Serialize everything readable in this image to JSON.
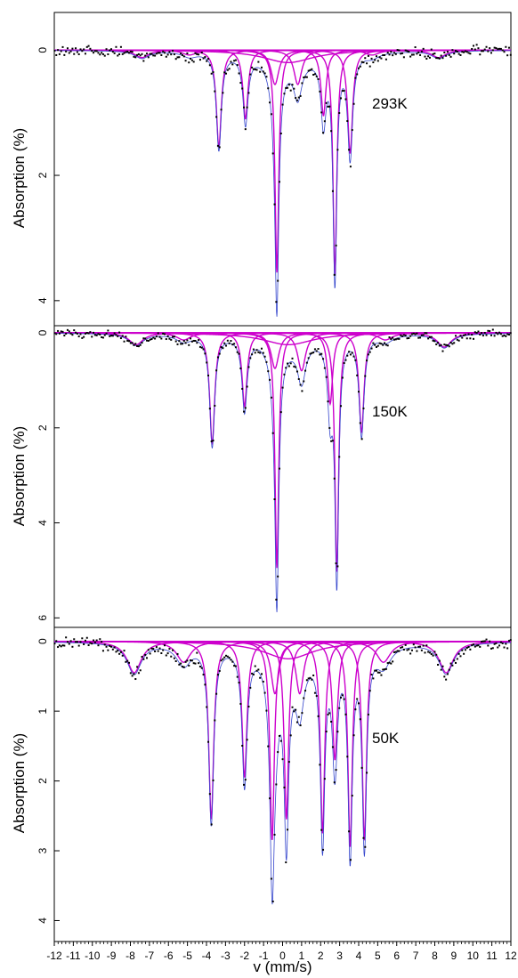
{
  "chart_data": [
    {
      "type": "scatter",
      "title": "",
      "annotation": "293K",
      "xlabel": "",
      "ylabel": "Absorption (%)",
      "xlim": [
        -12,
        12
      ],
      "ylim": [
        4.4,
        -0.6
      ],
      "ytick_labels": [
        "0",
        "2",
        "4"
      ],
      "ytick_values": [
        0,
        2,
        4
      ],
      "series": [
        {
          "kind": "fit-subspectrum",
          "color": "#cc00cc",
          "components": [
            {
              "center": -3.35,
              "depth": 1.55,
              "width": 0.16
            },
            {
              "center": -1.95,
              "depth": 1.1,
              "width": 0.16
            },
            {
              "center": -0.3,
              "depth": 3.55,
              "width": 0.12
            },
            {
              "center": 2.75,
              "depth": 3.6,
              "width": 0.12
            },
            {
              "center": 2.15,
              "depth": 1.05,
              "width": 0.16
            },
            {
              "center": 3.55,
              "depth": 1.65,
              "width": 0.16
            },
            {
              "center": -0.4,
              "depth": 0.55,
              "width": 0.25
            },
            {
              "center": 0.8,
              "depth": 0.55,
              "width": 0.25
            },
            {
              "center": -7.4,
              "depth": 0.12,
              "width": 0.45
            },
            {
              "center": -4.9,
              "depth": 0.08,
              "width": 0.45
            },
            {
              "center": 0.3,
              "depth": 0.2,
              "width": 1.6
            },
            {
              "center": 4.7,
              "depth": 0.08,
              "width": 0.45
            },
            {
              "center": 8.2,
              "depth": 0.12,
              "width": 0.45
            }
          ]
        }
      ]
    },
    {
      "type": "scatter",
      "title": "",
      "annotation": "150K",
      "xlabel": "",
      "ylabel": "Absorption (%)",
      "xlim": [
        -12,
        12
      ],
      "ylim": [
        6.2,
        -0.15
      ],
      "ytick_labels": [
        "0",
        "2",
        "4",
        "6"
      ],
      "ytick_values": [
        0,
        2,
        4,
        6
      ],
      "series": [
        {
          "kind": "fit-subspectrum",
          "color": "#cc00cc",
          "components": [
            {
              "center": -3.7,
              "depth": 2.35,
              "width": 0.16
            },
            {
              "center": -2.0,
              "depth": 1.55,
              "width": 0.16
            },
            {
              "center": -0.3,
              "depth": 4.95,
              "width": 0.12
            },
            {
              "center": 2.85,
              "depth": 5.05,
              "width": 0.12
            },
            {
              "center": 2.5,
              "depth": 1.5,
              "width": 0.16
            },
            {
              "center": 4.15,
              "depth": 2.1,
              "width": 0.16
            },
            {
              "center": -0.4,
              "depth": 0.75,
              "width": 0.25
            },
            {
              "center": 1.0,
              "depth": 0.8,
              "width": 0.25
            },
            {
              "center": -7.7,
              "depth": 0.25,
              "width": 0.45
            },
            {
              "center": -5.2,
              "depth": 0.15,
              "width": 0.45
            },
            {
              "center": 0.3,
              "depth": 0.25,
              "width": 1.6
            },
            {
              "center": 5.4,
              "depth": 0.15,
              "width": 0.45
            },
            {
              "center": 8.5,
              "depth": 0.3,
              "width": 0.45
            }
          ]
        }
      ]
    },
    {
      "type": "scatter",
      "title": "",
      "annotation": "50K",
      "xlabel": "v (mm/s)",
      "ylabel": "Absorption (%)",
      "xlim": [
        -12,
        12
      ],
      "ylim": [
        4.3,
        -0.2
      ],
      "xtick_labels": [
        "-12",
        "-11",
        "-10",
        "-9",
        "-8",
        "-7",
        "-6",
        "-5",
        "-4",
        "-3",
        "-2",
        "-1",
        "0",
        "1",
        "2",
        "3",
        "4",
        "5",
        "6",
        "7",
        "8",
        "9",
        "10",
        "11",
        "12"
      ],
      "xtick_values": [
        -12,
        -11,
        -10,
        -9,
        -8,
        -7,
        -6,
        -5,
        -4,
        -3,
        -2,
        -1,
        0,
        1,
        2,
        3,
        4,
        5,
        6,
        7,
        8,
        9,
        10,
        11,
        12
      ],
      "ytick_labels": [
        "0",
        "1",
        "2",
        "3",
        "4"
      ],
      "ytick_values": [
        0,
        1,
        2,
        3,
        4
      ],
      "series": [
        {
          "kind": "fit-subspectrum",
          "color": "#cc00cc",
          "components": [
            {
              "center": -3.75,
              "depth": 2.55,
              "width": 0.16
            },
            {
              "center": -2.0,
              "depth": 1.95,
              "width": 0.16
            },
            {
              "center": -0.55,
              "depth": 2.85,
              "width": 0.14
            },
            {
              "center": 0.2,
              "depth": 2.55,
              "width": 0.14
            },
            {
              "center": 2.1,
              "depth": 2.75,
              "width": 0.14
            },
            {
              "center": 2.75,
              "depth": 1.7,
              "width": 0.16
            },
            {
              "center": 3.55,
              "depth": 2.95,
              "width": 0.14
            },
            {
              "center": 4.3,
              "depth": 2.85,
              "width": 0.14
            },
            {
              "center": -0.4,
              "depth": 0.75,
              "width": 0.25
            },
            {
              "center": 0.9,
              "depth": 0.75,
              "width": 0.25
            },
            {
              "center": -7.8,
              "depth": 0.45,
              "width": 0.45
            },
            {
              "center": -5.2,
              "depth": 0.3,
              "width": 0.45
            },
            {
              "center": 0.3,
              "depth": 0.25,
              "width": 1.6
            },
            {
              "center": 5.3,
              "depth": 0.3,
              "width": 0.45
            },
            {
              "center": 8.6,
              "depth": 0.45,
              "width": 0.45
            }
          ]
        }
      ]
    }
  ],
  "colors": {
    "fit": "#cc00cc",
    "total_fit": "#3344cc",
    "data_points": "#000000",
    "frame": "#000000"
  }
}
